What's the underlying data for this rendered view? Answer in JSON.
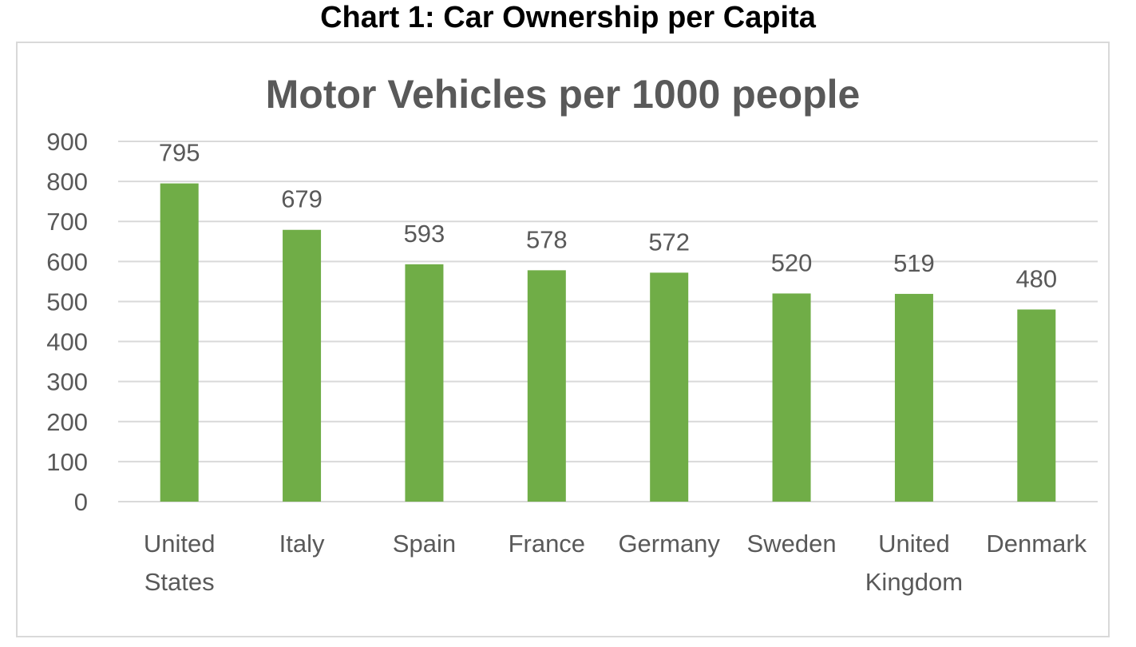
{
  "caption": "Chart 1: Car Ownership per Capita",
  "chart_data": {
    "type": "bar",
    "title": "Motor Vehicles per 1000 people",
    "xlabel": "",
    "ylabel": "",
    "categories": [
      [
        "United",
        "States"
      ],
      [
        "Italy"
      ],
      [
        "Spain"
      ],
      [
        "France"
      ],
      [
        "Germany"
      ],
      [
        "Sweden"
      ],
      [
        "United",
        "Kingdom"
      ],
      [
        "Denmark"
      ]
    ],
    "values": [
      795,
      679,
      593,
      578,
      572,
      520,
      519,
      480
    ],
    "data_labels": [
      "795",
      "679",
      "593",
      "578",
      "572",
      "520",
      "519",
      "480"
    ],
    "ylim": [
      0,
      900
    ],
    "yticks": [
      "0",
      "100",
      "200",
      "300",
      "400",
      "500",
      "600",
      "700",
      "800",
      "900"
    ],
    "grid": true,
    "legend": "none",
    "colors": {
      "bar": "#70ad47",
      "grid": "#d9d9d9",
      "text": "#595959"
    }
  }
}
